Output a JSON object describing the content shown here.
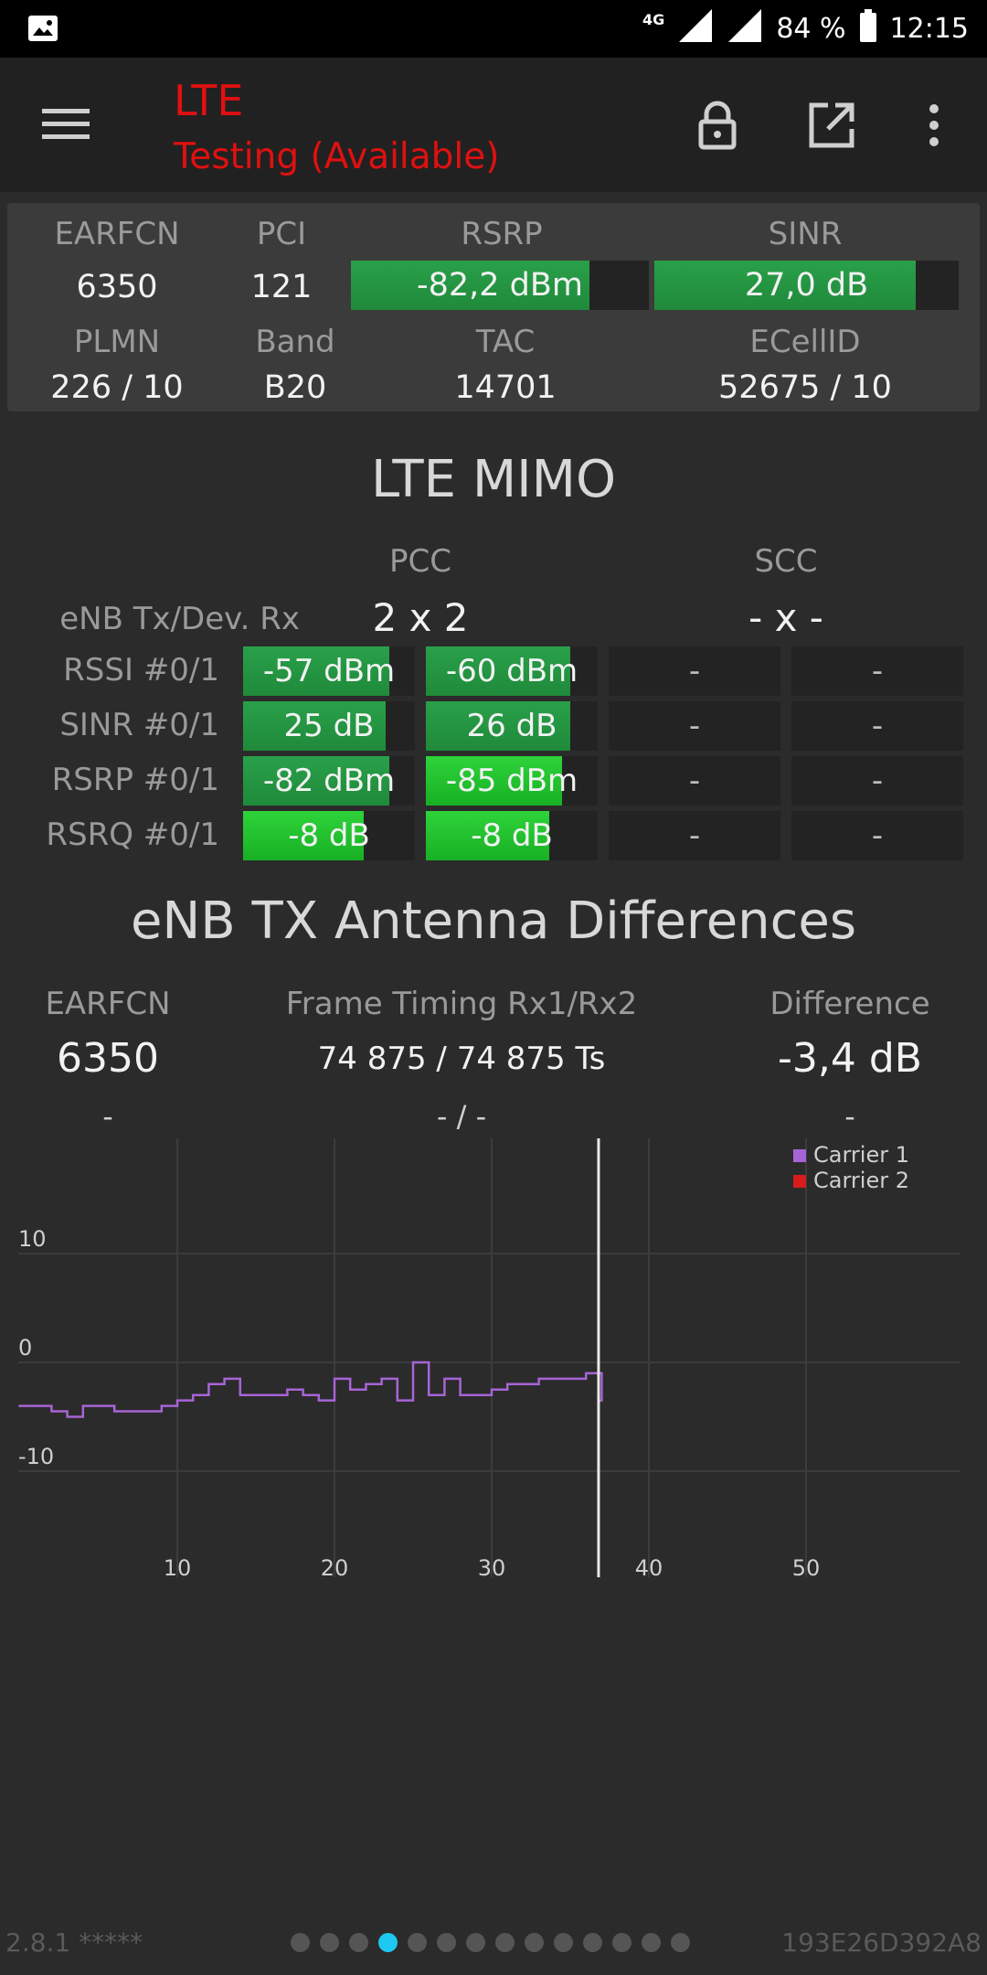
{
  "status_bar": {
    "network": "4G",
    "battery": "84 %",
    "time": "12:15"
  },
  "toolbar": {
    "title": "LTE",
    "subtitle": "Testing (Available)",
    "icons": [
      "menu-icon",
      "lock-icon",
      "open-external-icon",
      "more-vert-icon"
    ]
  },
  "info": {
    "earfcn_label": "EARFCN",
    "earfcn": "6350",
    "pci_label": "PCI",
    "pci": "121",
    "rsrp_label": "RSRP",
    "rsrp": "-82,2 dBm",
    "rsrp_level": 0.8,
    "sinr_label": "SINR",
    "sinr": "27,0 dB",
    "sinr_level": 0.86,
    "plmn_label": "PLMN",
    "plmn": "226 / 10",
    "band_label": "Band",
    "band": "B20",
    "tac_label": "TAC",
    "tac": "14701",
    "ecellid_label": "ECellID",
    "ecellid": "52675 / 10"
  },
  "mimo": {
    "title": "LTE MIMO",
    "pcc_label": "PCC",
    "scc_label": "SCC",
    "enb_label": "eNB Tx/Dev. Rx",
    "pcc_value": "2 x 2",
    "scc_value": "- x -",
    "rows": [
      {
        "label": "RSSI #0/1",
        "c0": "-57 dBm",
        "c0_level": 0.85,
        "c1": "-60 dBm",
        "c1_level": 0.84,
        "c2": "-",
        "c3": "-"
      },
      {
        "label": "SINR #0/1",
        "c0": "25 dB",
        "c0_level": 0.83,
        "c1": "26 dB",
        "c1_level": 0.84,
        "c2": "-",
        "c3": "-"
      },
      {
        "label": "RSRP #0/1",
        "c0": "-82 dBm",
        "c0_level": 0.85,
        "c1": "-85 dBm",
        "c1_level": 0.79,
        "c2": "-",
        "c3": "-"
      },
      {
        "label": "RSRQ #0/1",
        "c0": "-8 dB",
        "c0_level": 0.7,
        "c1": "-8 dB",
        "c1_level": 0.72,
        "c2": "-",
        "c3": "-"
      }
    ]
  },
  "antenna": {
    "title": "eNB TX Antenna Differences",
    "earfcn_label": "EARFCN",
    "earfcn": "6350",
    "earfcn2": "-",
    "timing_label": "Frame Timing Rx1/Rx2",
    "timing": "74 875 / 74 875 Ts",
    "timing2": "- / -",
    "diff_label": "Difference",
    "diff": "-3,4 dB",
    "diff2": "-"
  },
  "chart_data": {
    "type": "line",
    "xlim": [
      0,
      57
    ],
    "ylim": [
      -19,
      20
    ],
    "x_ticks": [
      "10",
      "20",
      "30",
      "40",
      "50"
    ],
    "y_ticks": [
      "10",
      "0",
      "-10"
    ],
    "grid": true,
    "legend_position": "top-right",
    "cursor_x": 36.8,
    "series": [
      {
        "name": "Carrier 1",
        "color": "#a764d6",
        "x": [
          0,
          1,
          2,
          3,
          4,
          5,
          6,
          7,
          8,
          9,
          10,
          11,
          12,
          13,
          14,
          15,
          16,
          17,
          18,
          19,
          20,
          21,
          22,
          23,
          24,
          25,
          26,
          27,
          28,
          29,
          30,
          31,
          32,
          33,
          34,
          35,
          36,
          37
        ],
        "y": [
          -4,
          -4,
          -4.5,
          -5,
          -4,
          -4,
          -4.5,
          -4.5,
          -4.5,
          -4,
          -3.5,
          -3,
          -2,
          -1.5,
          -3,
          -3,
          -3,
          -2.5,
          -3,
          -3.5,
          -1.5,
          -2.5,
          -2,
          -1.5,
          -3.5,
          0,
          -3,
          -1.5,
          -3,
          -3,
          -2.5,
          -2,
          -2,
          -1.5,
          -1.5,
          -1.5,
          -1,
          -3.5
        ]
      },
      {
        "name": "Carrier 2",
        "color": "#d81b1b",
        "x": [],
        "y": []
      }
    ]
  },
  "footer": {
    "version": "2.8.1 *****",
    "device_id": "193E26D392A8",
    "page_count": 14,
    "active_page": 4
  }
}
